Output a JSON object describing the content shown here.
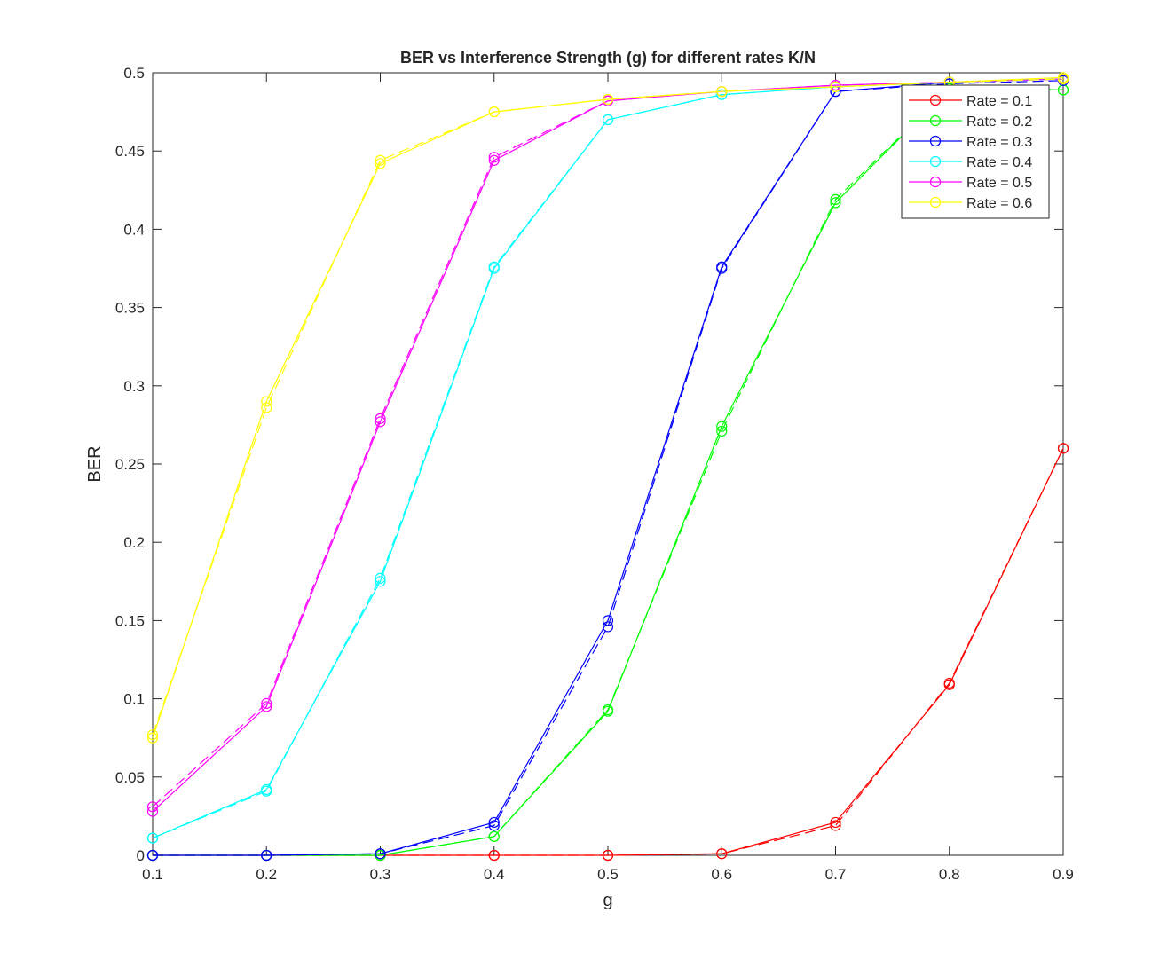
{
  "chart_data": {
    "type": "line",
    "title": "BER vs Interference Strength (g) for different rates K/N",
    "xlabel": "g",
    "ylabel": "BER",
    "xlim": [
      0.1,
      0.9
    ],
    "ylim": [
      0,
      0.5
    ],
    "x": [
      0.1,
      0.2,
      0.3,
      0.4,
      0.5,
      0.6,
      0.7,
      0.8,
      0.9
    ],
    "xticks": [
      "0.1",
      "0.2",
      "0.3",
      "0.4",
      "0.5",
      "0.6",
      "0.7",
      "0.8",
      "0.9"
    ],
    "yticks": [
      "0",
      "0.05",
      "0.1",
      "0.15",
      "0.2",
      "0.25",
      "0.3",
      "0.35",
      "0.4",
      "0.45",
      "0.5"
    ],
    "grid": false,
    "legend_position": "top-right",
    "marker": "circle",
    "series": [
      {
        "name": "Rate = 0.1",
        "color": "#ff0000",
        "values": [
          0,
          0,
          0,
          0,
          0,
          0.001,
          0.021,
          0.109,
          0.26
        ],
        "values_dashed": [
          0,
          0,
          0,
          0,
          0,
          0.001,
          0.019,
          0.11,
          0.26
        ]
      },
      {
        "name": "Rate = 0.2",
        "color": "#00ff00",
        "values": [
          0,
          0,
          0,
          0.012,
          0.092,
          0.274,
          0.417,
          0.49,
          0.489
        ],
        "values_dashed": [
          0,
          0,
          0,
          0.012,
          0.093,
          0.271,
          0.419,
          0.49,
          0.489
        ]
      },
      {
        "name": "Rate = 0.3",
        "color": "#0000ff",
        "values": [
          0,
          0,
          0.001,
          0.021,
          0.15,
          0.376,
          0.488,
          0.494,
          0.496
        ],
        "values_dashed": [
          0,
          0,
          0.001,
          0.019,
          0.146,
          0.375,
          0.488,
          0.493,
          0.495
        ]
      },
      {
        "name": "Rate = 0.4",
        "color": "#00ffff",
        "values": [
          0.011,
          0.042,
          0.175,
          0.375,
          0.47,
          0.486,
          0.491,
          0.494,
          0.496
        ],
        "values_dashed": [
          0.011,
          0.041,
          0.177,
          0.376,
          0.47,
          0.486,
          0.491,
          0.494,
          0.496
        ]
      },
      {
        "name": "Rate = 0.5",
        "color": "#ff00ff",
        "values": [
          0.028,
          0.095,
          0.277,
          0.444,
          0.482,
          0.488,
          0.492,
          0.494,
          0.496
        ],
        "values_dashed": [
          0.031,
          0.097,
          0.279,
          0.446,
          0.482,
          0.488,
          0.492,
          0.494,
          0.496
        ]
      },
      {
        "name": "Rate = 0.6",
        "color": "#ffff00",
        "values": [
          0.075,
          0.29,
          0.442,
          0.475,
          0.483,
          0.488,
          0.491,
          0.494,
          0.497
        ],
        "values_dashed": [
          0.077,
          0.286,
          0.444,
          0.475,
          0.483,
          0.488,
          0.491,
          0.494,
          0.496
        ]
      }
    ]
  }
}
